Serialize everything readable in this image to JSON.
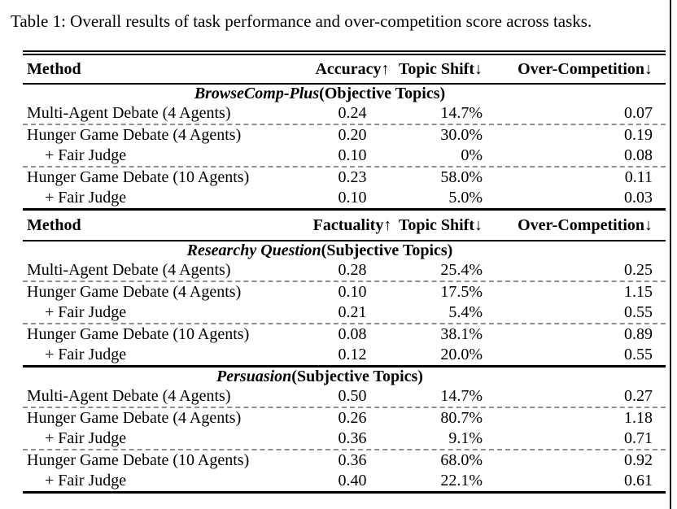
{
  "caption": "Table 1: Overall results of task performance and over-competition score across tasks.",
  "t1": {
    "columns": {
      "method": "Method",
      "metric": "Accuracy↑",
      "shift": "Topic Shift↓",
      "oc": "Over-Competition↓"
    },
    "section": {
      "name": "BrowseComp-Plus",
      "rest": " (Objective Topics)"
    },
    "rows": [
      {
        "method": "Multi-Agent Debate (4 Agents)",
        "metric": "0.24",
        "shift": "14.7%",
        "oc": "0.07"
      },
      {
        "method": "Hunger Game Debate (4 Agents)",
        "metric": "0.20",
        "shift": "30.0%",
        "oc": "0.19"
      },
      {
        "method": "+ Fair Judge",
        "metric": "0.10",
        "shift": "0%",
        "oc": "0.08"
      },
      {
        "method": "Hunger Game Debate (10 Agents)",
        "metric": "0.23",
        "shift": "58.0%",
        "oc": "0.11"
      },
      {
        "method": "+ Fair Judge",
        "metric": "0.10",
        "shift": "5.0%",
        "oc": "0.03"
      }
    ]
  },
  "t2": {
    "columns": {
      "method": "Method",
      "metric": "Factuality↑",
      "shift": "Topic Shift↓",
      "oc": "Over-Competition↓"
    },
    "section": {
      "name": "Researchy Question",
      "rest": " (Subjective Topics)"
    },
    "rows": [
      {
        "method": "Multi-Agent Debate (4 Agents)",
        "metric": "0.28",
        "shift": "25.4%",
        "oc": "0.25"
      },
      {
        "method": "Hunger Game Debate (4 Agents)",
        "metric": "0.10",
        "shift": "17.5%",
        "oc": "1.15"
      },
      {
        "method": "+ Fair Judge",
        "metric": "0.21",
        "shift": "5.4%",
        "oc": "0.55"
      },
      {
        "method": "Hunger Game Debate (10 Agents)",
        "metric": "0.08",
        "shift": "38.1%",
        "oc": "0.89"
      },
      {
        "method": "+ Fair Judge",
        "metric": "0.12",
        "shift": "20.0%",
        "oc": "0.55"
      }
    ]
  },
  "t3": {
    "section": {
      "name": "Persuasion",
      "rest": " (Subjective Topics)"
    },
    "rows": [
      {
        "method": "Multi-Agent Debate (4 Agents)",
        "metric": "0.50",
        "shift": "14.7%",
        "oc": "0.27"
      },
      {
        "method": "Hunger Game Debate (4 Agents)",
        "metric": "0.26",
        "shift": "80.7%",
        "oc": "1.18"
      },
      {
        "method": "+ Fair Judge",
        "metric": "0.36",
        "shift": "9.1%",
        "oc": "0.71"
      },
      {
        "method": "Hunger Game Debate (10 Agents)",
        "metric": "0.36",
        "shift": "68.0%",
        "oc": "0.92"
      },
      {
        "method": "+ Fair Judge",
        "metric": "0.40",
        "shift": "22.1%",
        "oc": "0.61"
      }
    ]
  }
}
